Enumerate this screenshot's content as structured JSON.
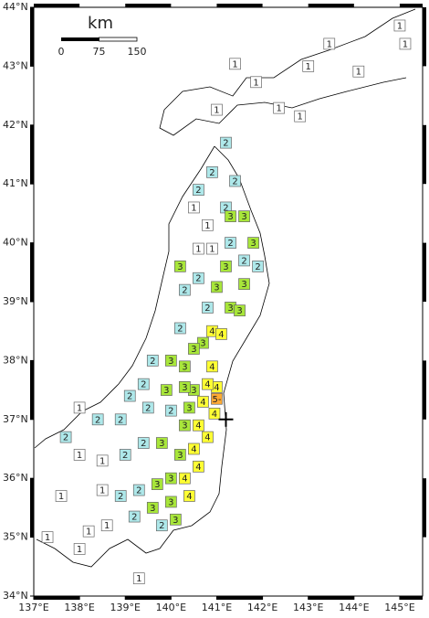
{
  "chart_data": {
    "type": "intensity-map",
    "scale_bar": {
      "unit": "km",
      "ticks": [
        0,
        75,
        150
      ]
    },
    "xlim": [
      137,
      145.5
    ],
    "ylim": [
      34,
      44
    ],
    "xticks": [
      {
        "value": 137,
        "label": "137°E"
      },
      {
        "value": 138,
        "label": "138°E"
      },
      {
        "value": 139,
        "label": "139°E"
      },
      {
        "value": 140,
        "label": "140°E"
      },
      {
        "value": 141,
        "label": "141°E"
      },
      {
        "value": 142,
        "label": "142°E"
      },
      {
        "value": 143,
        "label": "143°E"
      },
      {
        "value": 144,
        "label": "144°E"
      },
      {
        "value": 145,
        "label": "145°E"
      }
    ],
    "yticks": [
      {
        "value": 34,
        "label": "34°N"
      },
      {
        "value": 35,
        "label": "35°N"
      },
      {
        "value": 36,
        "label": "36°N"
      },
      {
        "value": 37,
        "label": "37°N"
      },
      {
        "value": 38,
        "label": "38°N"
      },
      {
        "value": 39,
        "label": "39°N"
      },
      {
        "value": 40,
        "label": "40°N"
      },
      {
        "value": 41,
        "label": "41°N"
      },
      {
        "value": 42,
        "label": "42°N"
      },
      {
        "value": 43,
        "label": "43°N"
      },
      {
        "value": 44,
        "label": "44°N"
      }
    ],
    "intensity_colors": {
      "1": "#ffffff",
      "2": "#aee8ea",
      "3": "#a8e63a",
      "4": "#ffff33",
      "5-": "#ffaa33"
    },
    "epicenter": {
      "lon": 141.2,
      "lat": 37.0
    },
    "stations": [
      {
        "lon": 141.4,
        "lat": 43.04,
        "label": "1"
      },
      {
        "lon": 141.0,
        "lat": 42.26,
        "label": "1"
      },
      {
        "lon": 141.86,
        "lat": 42.73,
        "label": "1"
      },
      {
        "lon": 142.36,
        "lat": 42.29,
        "label": "1"
      },
      {
        "lon": 142.82,
        "lat": 42.15,
        "label": "1"
      },
      {
        "lon": 143.0,
        "lat": 43.0,
        "label": "1"
      },
      {
        "lon": 143.46,
        "lat": 43.38,
        "label": "1"
      },
      {
        "lon": 144.1,
        "lat": 42.91,
        "label": "1"
      },
      {
        "lon": 145.0,
        "lat": 43.69,
        "label": "1"
      },
      {
        "lon": 145.12,
        "lat": 43.38,
        "label": "1"
      },
      {
        "lon": 141.2,
        "lat": 41.7,
        "label": "2"
      },
      {
        "lon": 140.6,
        "lat": 40.9,
        "label": "2"
      },
      {
        "lon": 140.9,
        "lat": 41.2,
        "label": "2"
      },
      {
        "lon": 141.4,
        "lat": 41.05,
        "label": "2"
      },
      {
        "lon": 141.2,
        "lat": 40.6,
        "label": "2"
      },
      {
        "lon": 140.5,
        "lat": 40.6,
        "label": "1"
      },
      {
        "lon": 140.8,
        "lat": 40.3,
        "label": "1"
      },
      {
        "lon": 141.3,
        "lat": 40.45,
        "label": "3"
      },
      {
        "lon": 141.6,
        "lat": 40.45,
        "label": "3"
      },
      {
        "lon": 141.8,
        "lat": 40.0,
        "label": "3"
      },
      {
        "lon": 141.3,
        "lat": 40.0,
        "label": "2"
      },
      {
        "lon": 141.6,
        "lat": 39.7,
        "label": "2"
      },
      {
        "lon": 141.9,
        "lat": 39.6,
        "label": "2"
      },
      {
        "lon": 140.2,
        "lat": 39.6,
        "label": "3"
      },
      {
        "lon": 140.6,
        "lat": 39.9,
        "label": "1"
      },
      {
        "lon": 140.9,
        "lat": 39.9,
        "label": "1"
      },
      {
        "lon": 141.2,
        "lat": 39.6,
        "label": "3"
      },
      {
        "lon": 140.6,
        "lat": 39.4,
        "label": "2"
      },
      {
        "lon": 141.6,
        "lat": 39.3,
        "label": "3"
      },
      {
        "lon": 141.0,
        "lat": 39.25,
        "label": "3"
      },
      {
        "lon": 140.3,
        "lat": 39.2,
        "label": "2"
      },
      {
        "lon": 140.8,
        "lat": 38.9,
        "label": "2"
      },
      {
        "lon": 141.3,
        "lat": 38.9,
        "label": "3"
      },
      {
        "lon": 141.5,
        "lat": 38.85,
        "label": "3"
      },
      {
        "lon": 140.9,
        "lat": 38.5,
        "label": "4"
      },
      {
        "lon": 141.1,
        "lat": 38.45,
        "label": "4"
      },
      {
        "lon": 140.7,
        "lat": 38.3,
        "label": "3"
      },
      {
        "lon": 140.2,
        "lat": 38.55,
        "label": "2"
      },
      {
        "lon": 140.0,
        "lat": 38.0,
        "label": "3"
      },
      {
        "lon": 140.5,
        "lat": 38.2,
        "label": "3"
      },
      {
        "lon": 140.3,
        "lat": 37.9,
        "label": "3"
      },
      {
        "lon": 139.6,
        "lat": 38.0,
        "label": "2"
      },
      {
        "lon": 140.9,
        "lat": 37.9,
        "label": "4"
      },
      {
        "lon": 141.0,
        "lat": 37.55,
        "label": "4"
      },
      {
        "lon": 140.8,
        "lat": 37.6,
        "label": "4"
      },
      {
        "lon": 140.5,
        "lat": 37.5,
        "label": "3"
      },
      {
        "lon": 140.3,
        "lat": 37.55,
        "label": "3"
      },
      {
        "lon": 139.9,
        "lat": 37.5,
        "label": "3"
      },
      {
        "lon": 139.4,
        "lat": 37.6,
        "label": "2"
      },
      {
        "lon": 139.1,
        "lat": 37.4,
        "label": "2"
      },
      {
        "lon": 139.5,
        "lat": 37.2,
        "label": "2"
      },
      {
        "lon": 140.0,
        "lat": 37.15,
        "label": "2"
      },
      {
        "lon": 140.4,
        "lat": 37.2,
        "label": "3"
      },
      {
        "lon": 140.7,
        "lat": 37.3,
        "label": "4"
      },
      {
        "lon": 140.95,
        "lat": 37.1,
        "label": "4"
      },
      {
        "lon": 141.0,
        "lat": 37.35,
        "label": "5-"
      },
      {
        "lon": 140.6,
        "lat": 36.9,
        "label": "4"
      },
      {
        "lon": 140.3,
        "lat": 36.9,
        "label": "3"
      },
      {
        "lon": 140.8,
        "lat": 36.7,
        "label": "4"
      },
      {
        "lon": 140.5,
        "lat": 36.5,
        "label": "4"
      },
      {
        "lon": 140.2,
        "lat": 36.4,
        "label": "3"
      },
      {
        "lon": 139.8,
        "lat": 36.6,
        "label": "3"
      },
      {
        "lon": 139.4,
        "lat": 36.6,
        "label": "2"
      },
      {
        "lon": 139.0,
        "lat": 36.4,
        "label": "2"
      },
      {
        "lon": 138.5,
        "lat": 36.3,
        "label": "1"
      },
      {
        "lon": 140.6,
        "lat": 36.2,
        "label": "4"
      },
      {
        "lon": 140.3,
        "lat": 36.0,
        "label": "4"
      },
      {
        "lon": 140.0,
        "lat": 36.0,
        "label": "3"
      },
      {
        "lon": 139.7,
        "lat": 35.9,
        "label": "3"
      },
      {
        "lon": 139.3,
        "lat": 35.8,
        "label": "2"
      },
      {
        "lon": 138.9,
        "lat": 35.7,
        "label": "2"
      },
      {
        "lon": 138.5,
        "lat": 35.8,
        "label": "1"
      },
      {
        "lon": 140.4,
        "lat": 35.7,
        "label": "4"
      },
      {
        "lon": 140.0,
        "lat": 35.6,
        "label": "3"
      },
      {
        "lon": 139.6,
        "lat": 35.5,
        "label": "3"
      },
      {
        "lon": 139.2,
        "lat": 35.35,
        "label": "2"
      },
      {
        "lon": 138.6,
        "lat": 35.2,
        "label": "1"
      },
      {
        "lon": 139.8,
        "lat": 35.2,
        "label": "2"
      },
      {
        "lon": 140.1,
        "lat": 35.3,
        "label": "3"
      },
      {
        "lon": 138.2,
        "lat": 35.1,
        "label": "1"
      },
      {
        "lon": 137.6,
        "lat": 35.7,
        "label": "1"
      },
      {
        "lon": 137.3,
        "lat": 35.0,
        "label": "1"
      },
      {
        "lon": 138.0,
        "lat": 34.8,
        "label": "1"
      },
      {
        "lon": 139.3,
        "lat": 34.3,
        "label": "1"
      },
      {
        "lon": 138.0,
        "lat": 36.4,
        "label": "1"
      },
      {
        "lon": 137.7,
        "lat": 36.7,
        "label": "2"
      },
      {
        "lon": 138.4,
        "lat": 37.0,
        "label": "2"
      },
      {
        "lon": 138.9,
        "lat": 37.0,
        "label": "2"
      },
      {
        "lon": 138.0,
        "lat": 37.2,
        "label": "1"
      }
    ]
  }
}
